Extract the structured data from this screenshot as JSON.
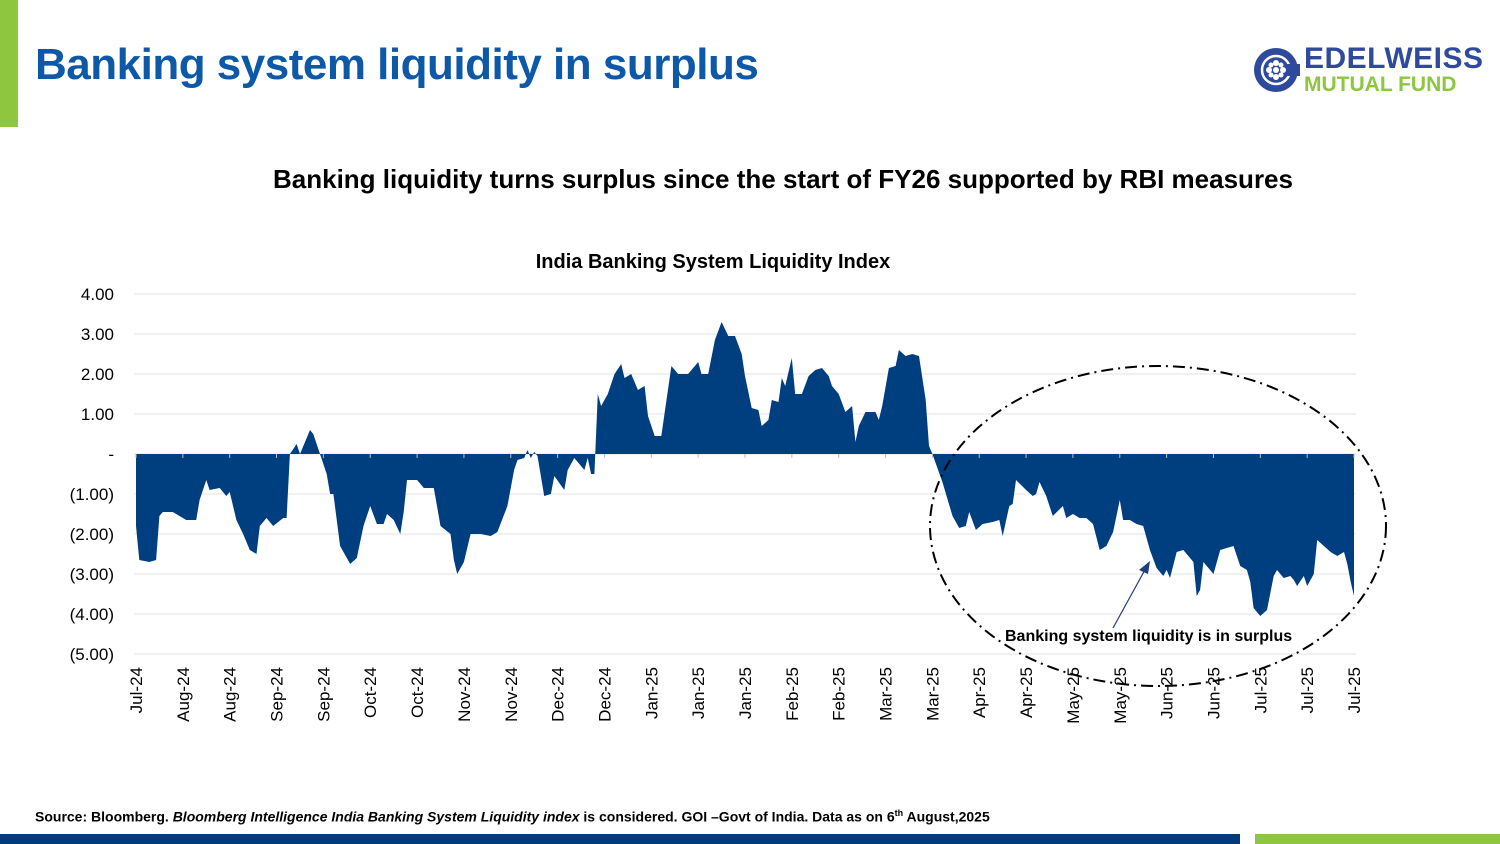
{
  "header": {
    "title": "Banking system liquidity in surplus",
    "logo": {
      "line1": "EDELWEISS",
      "line2": "MUTUAL FUND"
    }
  },
  "subtitle": "Banking liquidity turns surplus since the start of FY26 supported by RBI measures",
  "colors": {
    "accent_green": "#8dc63f",
    "title_blue": "#0d59a8",
    "area_fill": "#003f7f",
    "footer_blue": "#003b7a"
  },
  "chart_data": {
    "type": "area",
    "title": "India Banking System Liquidity Index",
    "xlabel": "",
    "ylabel": "",
    "ylim": [
      -5,
      4
    ],
    "yticks": [
      {
        "value": 4,
        "label": "4.00"
      },
      {
        "value": 3,
        "label": "3.00"
      },
      {
        "value": 2,
        "label": "2.00"
      },
      {
        "value": 1,
        "label": "1.00"
      },
      {
        "value": 0,
        "label": "-"
      },
      {
        "value": -1,
        "label": "(1.00)"
      },
      {
        "value": -2,
        "label": "(2.00)"
      },
      {
        "value": -3,
        "label": "(3.00)"
      },
      {
        "value": -4,
        "label": "(4.00)"
      },
      {
        "value": -5,
        "label": "(5.00)"
      }
    ],
    "xlim": [
      "2024-07-31",
      "2025-07-30"
    ],
    "xticks": [
      "Jul-24",
      "Aug-24",
      "Aug-24",
      "Sep-24",
      "Sep-24",
      "Oct-24",
      "Oct-24",
      "Nov-24",
      "Nov-24",
      "Dec-24",
      "Dec-24",
      "Jan-25",
      "Jan-25",
      "Jan-25",
      "Feb-25",
      "Feb-25",
      "Mar-25",
      "Mar-25",
      "Apr-25",
      "Apr-25",
      "May-25",
      "May-25",
      "Jun-25",
      "Jun-25",
      "Jul-25",
      "Jul-25",
      "Jul-25"
    ],
    "grid": true,
    "series": [
      {
        "points": [
          [
            "2024-07-31",
            -1.8
          ],
          [
            "2024-08-01",
            -2.65
          ],
          [
            "2024-08-04",
            -2.7
          ],
          [
            "2024-08-06",
            -2.65
          ],
          [
            "2024-08-07",
            -1.55
          ],
          [
            "2024-08-08",
            -1.45
          ],
          [
            "2024-08-11",
            -1.45
          ],
          [
            "2024-08-13",
            -1.55
          ],
          [
            "2024-08-15",
            -1.65
          ],
          [
            "2024-08-18",
            -1.65
          ],
          [
            "2024-08-19",
            -1.15
          ],
          [
            "2024-08-21",
            -0.65
          ],
          [
            "2024-08-22",
            -0.9
          ],
          [
            "2024-08-25",
            -0.85
          ],
          [
            "2024-08-27",
            -1.05
          ],
          [
            "2024-08-28",
            -0.95
          ],
          [
            "2024-08-30",
            -1.65
          ],
          [
            "2024-09-01",
            -2.0
          ],
          [
            "2024-09-03",
            -2.4
          ],
          [
            "2024-09-05",
            -2.5
          ],
          [
            "2024-09-06",
            -1.8
          ],
          [
            "2024-09-08",
            -1.6
          ],
          [
            "2024-09-10",
            -1.8
          ],
          [
            "2024-09-13",
            -1.6
          ],
          [
            "2024-09-14",
            -1.6
          ],
          [
            "2024-09-15",
            0
          ],
          [
            "2024-09-17",
            0.25
          ],
          [
            "2024-09-18",
            0
          ],
          [
            "2024-09-21",
            0.6
          ],
          [
            "2024-09-22",
            0.5
          ],
          [
            "2024-09-24",
            0
          ],
          [
            "2024-09-26",
            -0.5
          ],
          [
            "2024-09-27",
            -1.0
          ],
          [
            "2024-09-28",
            -1.0
          ],
          [
            "2024-09-30",
            -2.3
          ],
          [
            "2024-10-03",
            -2.75
          ],
          [
            "2024-10-05",
            -2.6
          ],
          [
            "2024-10-07",
            -1.8
          ],
          [
            "2024-10-09",
            -1.3
          ],
          [
            "2024-10-11",
            -1.75
          ],
          [
            "2024-10-13",
            -1.75
          ],
          [
            "2024-10-14",
            -1.5
          ],
          [
            "2024-10-16",
            -1.65
          ],
          [
            "2024-10-18",
            -2.0
          ],
          [
            "2024-10-19",
            -1.45
          ],
          [
            "2024-10-20",
            -0.65
          ],
          [
            "2024-10-23",
            -0.65
          ],
          [
            "2024-10-25",
            -0.85
          ],
          [
            "2024-10-28",
            -0.85
          ],
          [
            "2024-10-30",
            -1.8
          ],
          [
            "2024-11-02",
            -2.0
          ],
          [
            "2024-11-03",
            -2.65
          ],
          [
            "2024-11-04",
            -3.0
          ],
          [
            "2024-11-06",
            -2.7
          ],
          [
            "2024-11-08",
            -2.0
          ],
          [
            "2024-11-11",
            -2.0
          ],
          [
            "2024-11-14",
            -2.05
          ],
          [
            "2024-11-16",
            -1.95
          ],
          [
            "2024-11-19",
            -1.3
          ],
          [
            "2024-11-21",
            -0.4
          ],
          [
            "2024-11-22",
            -0.15
          ],
          [
            "2024-11-24",
            -0.1
          ],
          [
            "2024-11-25",
            0.1
          ],
          [
            "2024-11-26",
            -0.1
          ],
          [
            "2024-11-27",
            0.05
          ],
          [
            "2024-11-28",
            -0.05
          ],
          [
            "2024-11-30",
            -1.05
          ],
          [
            "2024-12-02",
            -1.0
          ],
          [
            "2024-12-03",
            -0.55
          ],
          [
            "2024-12-06",
            -0.9
          ],
          [
            "2024-12-07",
            -0.4
          ],
          [
            "2024-12-09",
            -0.1
          ],
          [
            "2024-12-12",
            -0.4
          ],
          [
            "2024-12-13",
            -0.1
          ],
          [
            "2024-12-14",
            -0.5
          ],
          [
            "2024-12-15",
            -0.5
          ],
          [
            "2024-12-16",
            1.5
          ],
          [
            "2024-12-17",
            1.2
          ],
          [
            "2024-12-19",
            1.5
          ],
          [
            "2024-12-21",
            2.0
          ],
          [
            "2024-12-23",
            2.25
          ],
          [
            "2024-12-24",
            1.9
          ],
          [
            "2024-12-26",
            2.0
          ],
          [
            "2024-12-28",
            1.6
          ],
          [
            "2024-12-30",
            1.7
          ],
          [
            "2024-12-31",
            0.95
          ],
          [
            "2025-01-02",
            0.45
          ],
          [
            "2025-01-04",
            0.45
          ],
          [
            "2025-01-07",
            2.2
          ],
          [
            "2025-01-09",
            2.0
          ],
          [
            "2025-01-12",
            2.0
          ],
          [
            "2025-01-15",
            2.3
          ],
          [
            "2025-01-16",
            2.0
          ],
          [
            "2025-01-18",
            2.0
          ],
          [
            "2025-01-20",
            2.85
          ],
          [
            "2025-01-22",
            3.3
          ],
          [
            "2025-01-24",
            2.95
          ],
          [
            "2025-01-26",
            2.95
          ],
          [
            "2025-01-28",
            2.5
          ],
          [
            "2025-01-29",
            1.95
          ],
          [
            "2025-01-31",
            1.15
          ],
          [
            "2025-02-02",
            1.1
          ],
          [
            "2025-02-03",
            0.7
          ],
          [
            "2025-02-05",
            0.85
          ],
          [
            "2025-02-06",
            1.35
          ],
          [
            "2025-02-08",
            1.3
          ],
          [
            "2025-02-09",
            1.9
          ],
          [
            "2025-02-10",
            1.7
          ],
          [
            "2025-02-12",
            2.4
          ],
          [
            "2025-02-13",
            1.5
          ],
          [
            "2025-02-15",
            1.5
          ],
          [
            "2025-02-17",
            1.95
          ],
          [
            "2025-02-19",
            2.1
          ],
          [
            "2025-02-21",
            2.15
          ],
          [
            "2025-02-23",
            1.95
          ],
          [
            "2025-02-24",
            1.7
          ],
          [
            "2025-02-26",
            1.5
          ],
          [
            "2025-02-28",
            1.05
          ],
          [
            "2025-03-02",
            1.2
          ],
          [
            "2025-03-03",
            0.3
          ],
          [
            "2025-03-04",
            0.7
          ],
          [
            "2025-03-06",
            1.05
          ],
          [
            "2025-03-09",
            1.05
          ],
          [
            "2025-03-10",
            0.85
          ],
          [
            "2025-03-11",
            1.2
          ],
          [
            "2025-03-13",
            2.15
          ],
          [
            "2025-03-15",
            2.2
          ],
          [
            "2025-03-16",
            2.6
          ],
          [
            "2025-03-18",
            2.45
          ],
          [
            "2025-03-20",
            2.5
          ],
          [
            "2025-03-22",
            2.45
          ],
          [
            "2025-03-24",
            1.35
          ],
          [
            "2025-03-25",
            0.2
          ],
          [
            "2025-03-26",
            0
          ],
          [
            "2025-03-29",
            -0.7
          ],
          [
            "2025-04-01",
            -1.55
          ],
          [
            "2025-04-03",
            -1.85
          ],
          [
            "2025-04-05",
            -1.8
          ],
          [
            "2025-04-06",
            -1.45
          ],
          [
            "2025-04-08",
            -1.9
          ],
          [
            "2025-04-10",
            -1.75
          ],
          [
            "2025-04-13",
            -1.7
          ],
          [
            "2025-04-15",
            -1.65
          ],
          [
            "2025-04-16",
            -2.05
          ],
          [
            "2025-04-18",
            -1.3
          ],
          [
            "2025-04-19",
            -1.25
          ],
          [
            "2025-04-20",
            -0.65
          ],
          [
            "2025-04-23",
            -0.9
          ],
          [
            "2025-04-25",
            -1.05
          ],
          [
            "2025-04-26",
            -1.0
          ],
          [
            "2025-04-27",
            -0.7
          ],
          [
            "2025-04-29",
            -1.05
          ],
          [
            "2025-05-01",
            -1.55
          ],
          [
            "2025-05-04",
            -1.3
          ],
          [
            "2025-05-05",
            -1.6
          ],
          [
            "2025-05-07",
            -1.5
          ],
          [
            "2025-05-09",
            -1.6
          ],
          [
            "2025-05-11",
            -1.6
          ],
          [
            "2025-05-13",
            -1.75
          ],
          [
            "2025-05-15",
            -2.4
          ],
          [
            "2025-05-17",
            -2.3
          ],
          [
            "2025-05-19",
            -1.95
          ],
          [
            "2025-05-21",
            -1.15
          ],
          [
            "2025-05-22",
            -1.65
          ],
          [
            "2025-05-24",
            -1.65
          ],
          [
            "2025-05-26",
            -1.75
          ],
          [
            "2025-05-28",
            -1.8
          ],
          [
            "2025-05-30",
            -2.4
          ],
          [
            "2025-06-01",
            -2.85
          ],
          [
            "2025-06-03",
            -3.05
          ],
          [
            "2025-06-04",
            -2.9
          ],
          [
            "2025-06-05",
            -3.1
          ],
          [
            "2025-06-07",
            -2.45
          ],
          [
            "2025-06-09",
            -2.4
          ],
          [
            "2025-06-10",
            -2.5
          ],
          [
            "2025-06-12",
            -2.7
          ],
          [
            "2025-06-13",
            -3.55
          ],
          [
            "2025-06-14",
            -3.4
          ],
          [
            "2025-06-15",
            -2.7
          ],
          [
            "2025-06-17",
            -2.9
          ],
          [
            "2025-06-18",
            -3.0
          ],
          [
            "2025-06-20",
            -2.4
          ],
          [
            "2025-06-22",
            -2.35
          ],
          [
            "2025-06-24",
            -2.3
          ],
          [
            "2025-06-26",
            -2.8
          ],
          [
            "2025-06-28",
            -2.9
          ],
          [
            "2025-06-29",
            -3.2
          ],
          [
            "2025-06-30",
            -3.85
          ],
          [
            "2025-07-02",
            -4.05
          ],
          [
            "2025-07-04",
            -3.9
          ],
          [
            "2025-07-06",
            -3.05
          ],
          [
            "2025-07-07",
            -2.9
          ],
          [
            "2025-07-09",
            -3.1
          ],
          [
            "2025-07-11",
            -3.05
          ],
          [
            "2025-07-12",
            -3.15
          ],
          [
            "2025-07-13",
            -3.3
          ],
          [
            "2025-07-15",
            -3.05
          ],
          [
            "2025-07-16",
            -3.3
          ],
          [
            "2025-07-18",
            -3.0
          ],
          [
            "2025-07-19",
            -2.15
          ],
          [
            "2025-07-21",
            -2.3
          ],
          [
            "2025-07-23",
            -2.45
          ],
          [
            "2025-07-25",
            -2.55
          ],
          [
            "2025-07-27",
            -2.45
          ],
          [
            "2025-07-28",
            -2.75
          ],
          [
            "2025-07-29",
            -3.2
          ],
          [
            "2025-07-30",
            -3.55
          ]
        ]
      }
    ],
    "annotation": {
      "text": "Banking system liquidity is in surplus",
      "style": "dash-dot ellipse with arrow"
    }
  },
  "footer": {
    "source_prefix": "Source: Bloomberg. ",
    "source_italic": "Bloomberg Intelligence India Banking System Liquidity index",
    "source_mid": " is considered. GOI –Govt of India. Data as on 6",
    "source_sup": "th",
    "source_suffix": " August,2025"
  }
}
